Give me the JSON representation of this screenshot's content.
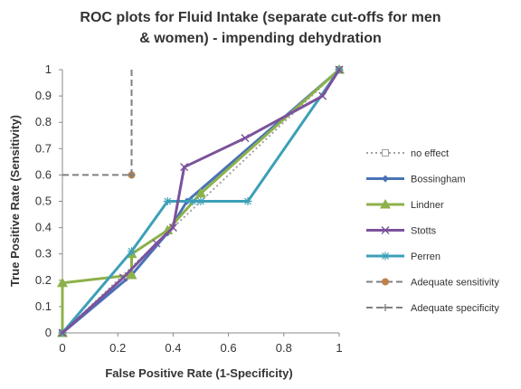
{
  "chart_data": {
    "type": "line",
    "title_lines": [
      "ROC plots for Fluid Intake (separate cut-offs for men",
      "& women) - impending dehydration"
    ],
    "xlabel": "False Positive Rate (1-Specificity)",
    "ylabel": "True Positive Rate (Sensitivity)",
    "xlim": [
      0,
      1
    ],
    "ylim": [
      0,
      1
    ],
    "x_ticks": [
      "0",
      "0.2",
      "0.4",
      "0.6",
      "0.8",
      "1"
    ],
    "y_ticks": [
      "0",
      "0.1",
      "0.2",
      "0.3",
      "0.4",
      "0.5",
      "0.6",
      "0.7",
      "0.8",
      "0.9",
      "1"
    ],
    "grid": false,
    "legend_position": "right",
    "series": [
      {
        "name": "no effect",
        "color": "#a0a0a0",
        "style": "dotted",
        "marker": "square-open",
        "points": [
          [
            0,
            0
          ],
          [
            1,
            1
          ]
        ]
      },
      {
        "name": "Bossingham",
        "color": "#4a72b8",
        "style": "solid",
        "marker": "diamond",
        "points": [
          [
            0,
            0
          ],
          [
            0.25,
            0.22
          ],
          [
            0.38,
            0.38
          ],
          [
            0.45,
            0.5
          ],
          [
            1,
            1
          ]
        ]
      },
      {
        "name": "Lindner",
        "color": "#8db14a",
        "style": "solid",
        "marker": "triangle",
        "points": [
          [
            0,
            0
          ],
          [
            0,
            0.19
          ],
          [
            0.25,
            0.22
          ],
          [
            0.25,
            0.3
          ],
          [
            0.38,
            0.39
          ],
          [
            0.5,
            0.53
          ],
          [
            1,
            1
          ]
        ]
      },
      {
        "name": "Stotts",
        "color": "#7b529c",
        "style": "solid",
        "marker": "x",
        "points": [
          [
            0,
            0
          ],
          [
            0.22,
            0.21
          ],
          [
            0.34,
            0.34
          ],
          [
            0.4,
            0.4
          ],
          [
            0.44,
            0.63
          ],
          [
            0.66,
            0.74
          ],
          [
            0.94,
            0.9
          ],
          [
            1,
            1
          ]
        ]
      },
      {
        "name": "Perren",
        "color": "#3d9fb8",
        "style": "solid",
        "marker": "star",
        "points": [
          [
            0,
            0
          ],
          [
            0.25,
            0.31
          ],
          [
            0.38,
            0.5
          ],
          [
            0.47,
            0.5
          ],
          [
            0.5,
            0.5
          ],
          [
            0.67,
            0.5
          ],
          [
            1,
            1
          ]
        ]
      },
      {
        "name": "Adequate sensitivity",
        "color": "#808080",
        "style": "dashed",
        "marker": "circle",
        "marker_color": "#c0804a",
        "points": [
          [
            0,
            0.6
          ],
          [
            0.25,
            0.6
          ]
        ]
      },
      {
        "name": "Adequate specificity",
        "color": "#808080",
        "style": "dashed",
        "marker": "plus",
        "points": [
          [
            0.25,
            1.0
          ],
          [
            0.25,
            0.6
          ]
        ]
      }
    ]
  }
}
